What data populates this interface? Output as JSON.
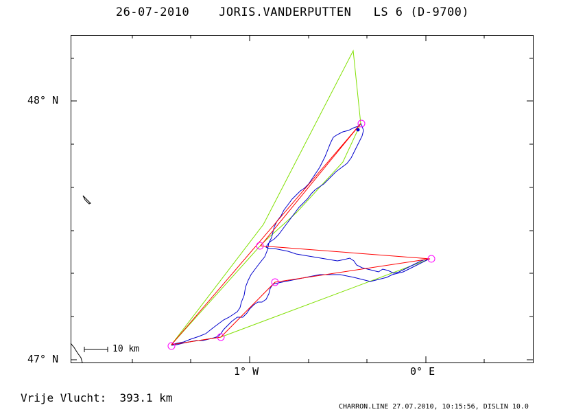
{
  "header": {
    "date": "26-07-2010",
    "pilot": "JORIS.VANDERPUTTEN",
    "glider": "LS 6 (D-9700)"
  },
  "axes": {
    "lat_labels": [
      "48° N",
      "47° N"
    ],
    "lon_labels": [
      "1° W",
      "0° E"
    ]
  },
  "scale": {
    "label": "10 km"
  },
  "summary": {
    "distance": "Vrije Vlucht:  393.1 km"
  },
  "footer": {
    "text": "CHARRON.LINE 27.07.2010, 10:15:56, DISLIN 10.0"
  },
  "colors": {
    "track": "#0000cc",
    "task": "#ff0000",
    "fai": "#80e000",
    "turnpoint": "#ff00ff",
    "frame": "#000000"
  }
}
